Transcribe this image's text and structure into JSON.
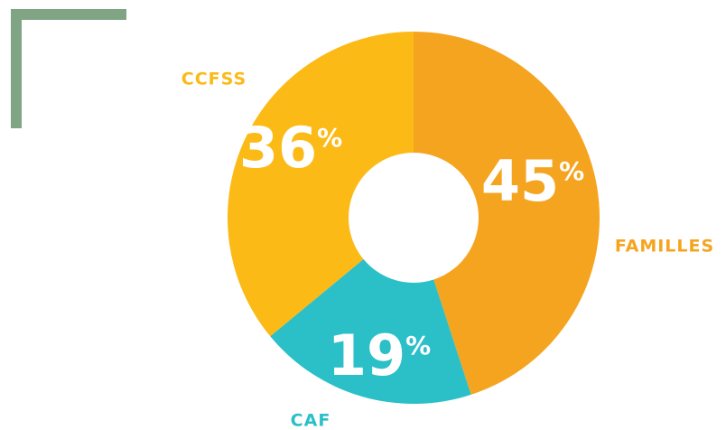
{
  "chart_data": {
    "type": "pie",
    "categories": [
      "FAMILLES",
      "CAF",
      "CCFSS"
    ],
    "values": [
      45,
      19,
      36
    ],
    "value_labels": [
      "45%",
      "19%",
      "36%"
    ],
    "colors": [
      "#f5a41f",
      "#2bbfc8",
      "#fbba16"
    ]
  }
}
